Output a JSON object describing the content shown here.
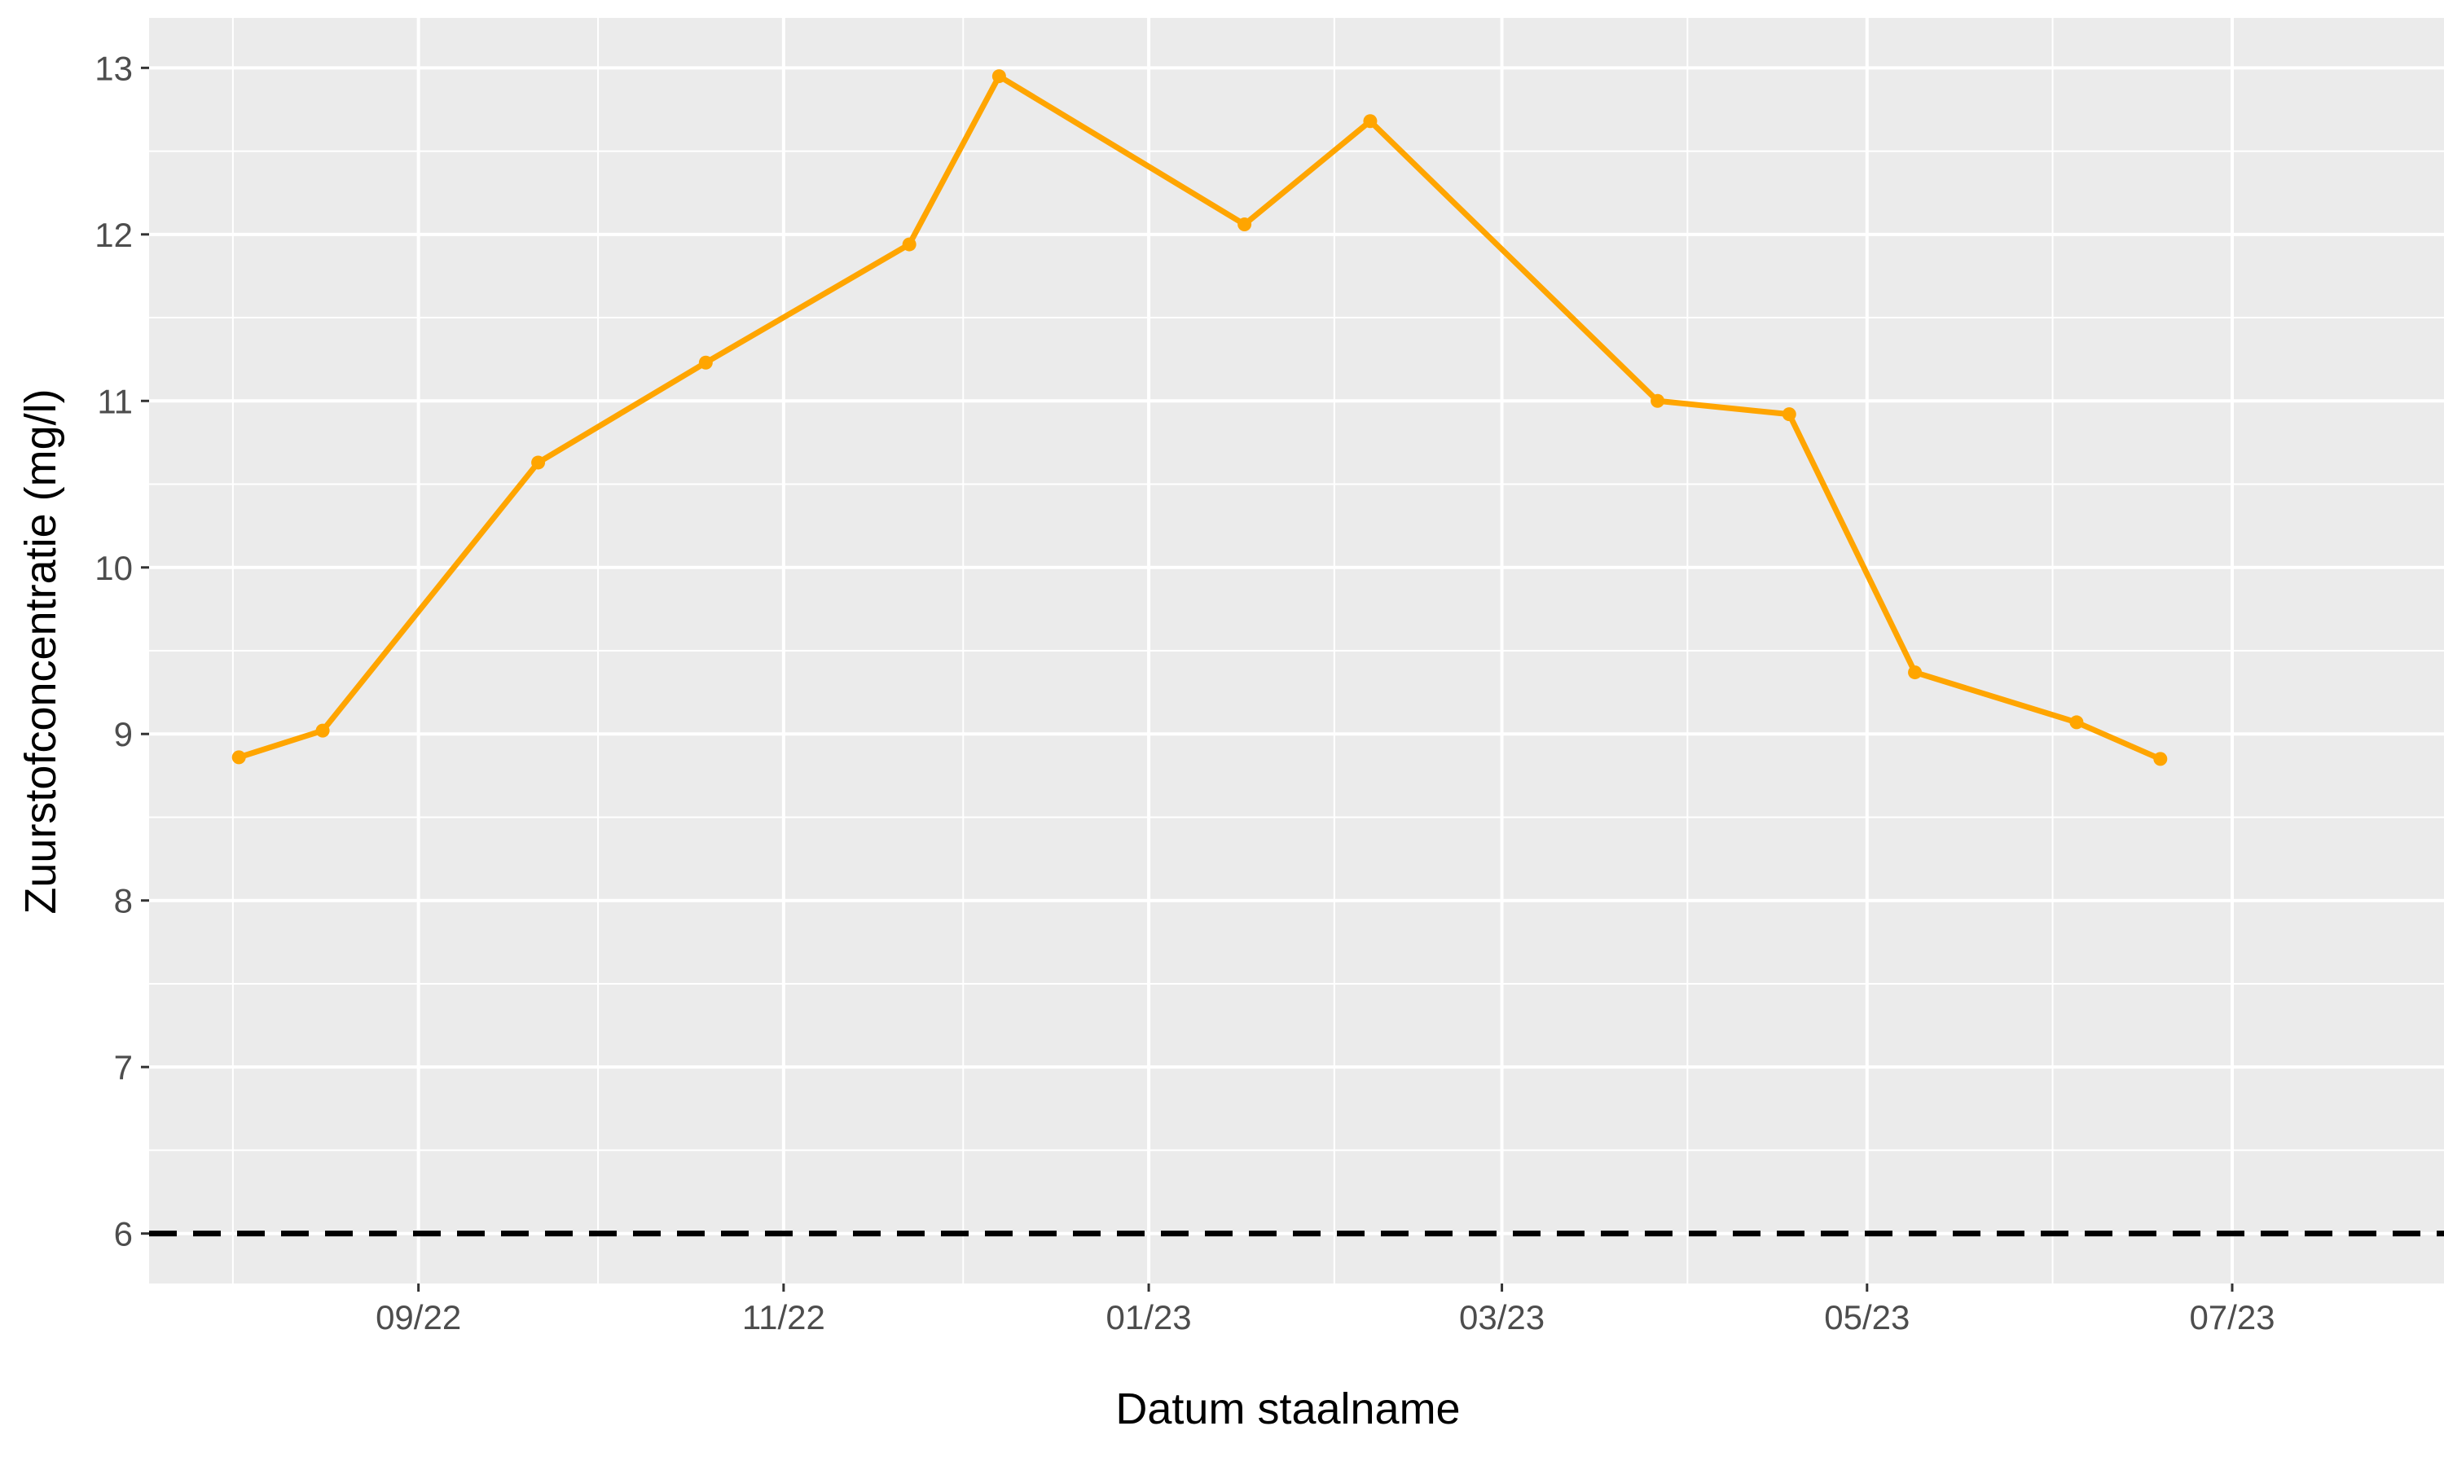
{
  "chart_data": {
    "type": "line",
    "title": "",
    "xlabel": "Datum staalname",
    "ylabel": "Zuurstofconcentratie (mg/l)",
    "x_ticks": [
      {
        "date": "2022-09-01",
        "label": "09/22"
      },
      {
        "date": "2022-11-01",
        "label": "11/22"
      },
      {
        "date": "2023-01-01",
        "label": "01/23"
      },
      {
        "date": "2023-03-01",
        "label": "03/23"
      },
      {
        "date": "2023-05-01",
        "label": "05/23"
      },
      {
        "date": "2023-07-01",
        "label": "07/23"
      }
    ],
    "x_minor_ticks": [
      "2022-08-01",
      "2022-10-01",
      "2022-12-01",
      "2023-02-01",
      "2023-04-01",
      "2023-06-01"
    ],
    "y_ticks": [
      6,
      7,
      8,
      9,
      10,
      11,
      12,
      13
    ],
    "xlim": [
      "2022-07-18",
      "2023-07-01"
    ],
    "ylim": [
      5.7,
      13.3
    ],
    "grid": true,
    "series": [
      {
        "color": "#FFA500",
        "points": [
          {
            "x": "2022-08-02",
            "y": 8.86
          },
          {
            "x": "2022-08-16",
            "y": 9.02
          },
          {
            "x": "2022-09-21",
            "y": 10.63
          },
          {
            "x": "2022-10-19",
            "y": 11.23
          },
          {
            "x": "2022-11-22",
            "y": 11.94
          },
          {
            "x": "2022-12-07",
            "y": 12.95
          },
          {
            "x": "2023-01-17",
            "y": 12.06
          },
          {
            "x": "2023-02-07",
            "y": 12.68
          },
          {
            "x": "2023-03-27",
            "y": 11.0
          },
          {
            "x": "2023-04-18",
            "y": 10.92
          },
          {
            "x": "2023-05-09",
            "y": 9.37
          },
          {
            "x": "2023-06-05",
            "y": 9.07
          },
          {
            "x": "2023-06-19",
            "y": 8.85
          }
        ]
      }
    ],
    "reference_lines": [
      {
        "y": 6,
        "style": "dashed",
        "color": "#000000"
      }
    ],
    "colors": {
      "panel_background": "#EBEBEB",
      "grid": "#FFFFFF",
      "series": "#FFA500",
      "reference": "#000000"
    }
  }
}
